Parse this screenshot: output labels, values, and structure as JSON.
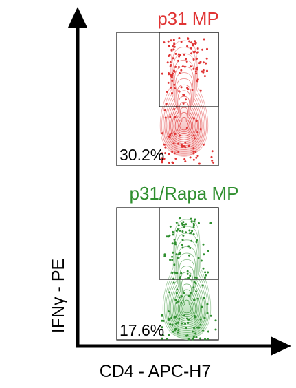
{
  "chart_data": {
    "type": "contour",
    "xlabel": "CD4 - APC-H7",
    "ylabel": "IFNγ - PE",
    "panels": [
      {
        "title": "p31 MP",
        "percentage": "30.2%",
        "color": "#e03434"
      },
      {
        "title": "p31/Rapa MP",
        "percentage": "17.6%",
        "color": "#2f8f2f"
      }
    ]
  }
}
